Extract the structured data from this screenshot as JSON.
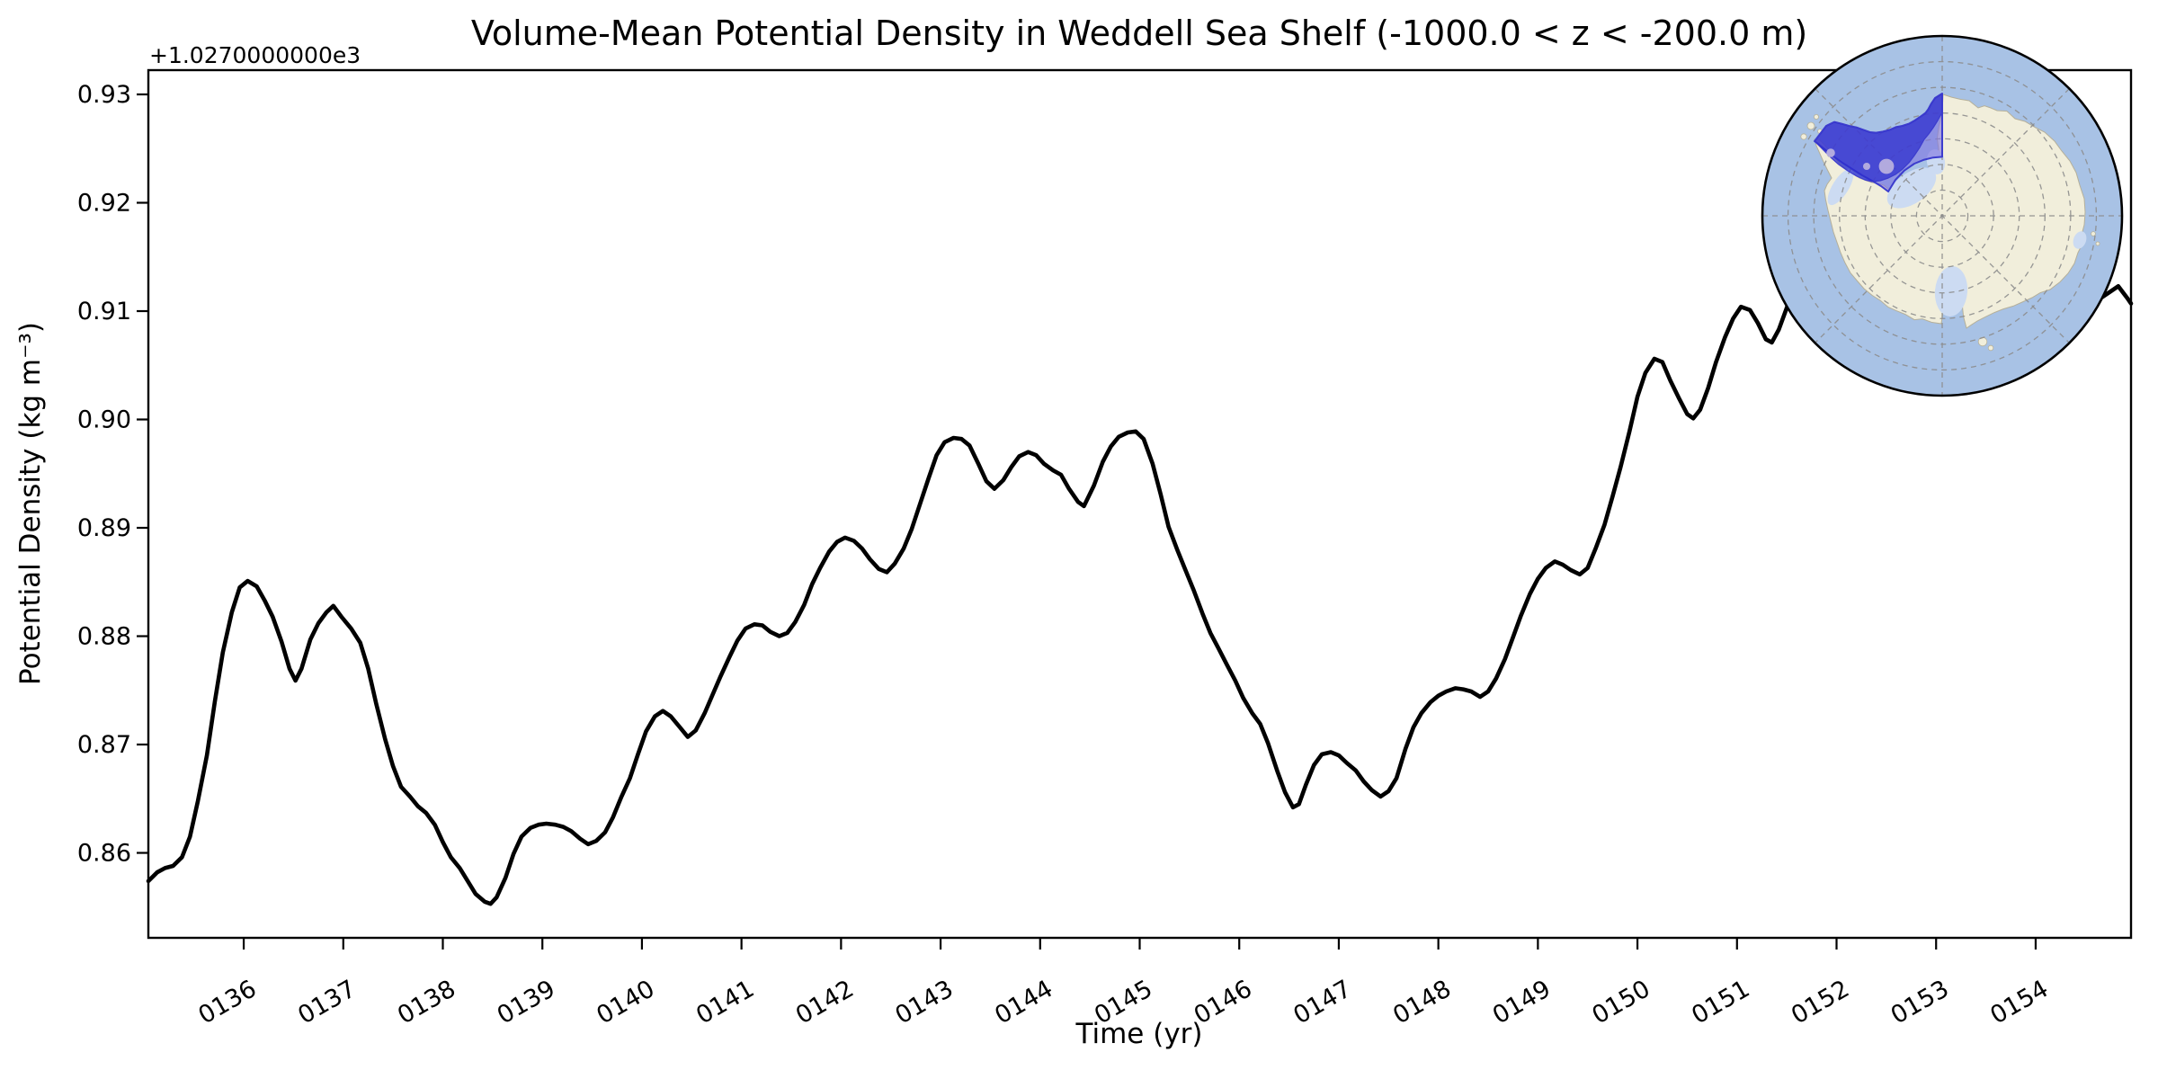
{
  "title": "Volume-Mean Potential Density in Weddell Sea Shelf (-1000.0 < z < -200.0 m)",
  "axes": {
    "xlabel": "Time (yr)",
    "ylabel": "Potential Density (kg m⁻³)",
    "y_offset_text": "+1.0270000000e3"
  },
  "chart_data": {
    "type": "line",
    "title": "Volume-Mean Potential Density in Weddell Sea Shelf (-1000.0 < z < -200.0 m)",
    "xlabel": "Time (yr)",
    "ylabel": "Potential Density (kg m⁻³)",
    "y_offset_value": 1027,
    "y_offset_text": "+1.0270000000e3",
    "xlim": [
      135.042,
      154.958
    ],
    "ylim": [
      0.85216,
      0.93224
    ],
    "x_ticks": [
      136,
      137,
      138,
      139,
      140,
      141,
      142,
      143,
      144,
      145,
      146,
      147,
      148,
      149,
      150,
      151,
      152,
      153,
      154
    ],
    "x_tick_labels": [
      "0136",
      "0137",
      "0138",
      "0139",
      "0140",
      "0141",
      "0142",
      "0143",
      "0144",
      "0145",
      "0146",
      "0147",
      "0148",
      "0149",
      "0150",
      "0151",
      "0152",
      "0153",
      "0154"
    ],
    "x_tick_rotation": 30,
    "y_ticks": [
      0.86,
      0.87,
      0.88,
      0.89,
      0.9,
      0.91,
      0.92,
      0.93
    ],
    "y_tick_labels": [
      "0.86",
      "0.87",
      "0.88",
      "0.89",
      "0.90",
      "0.91",
      "0.92",
      "0.93"
    ],
    "grid": false,
    "legend": "none",
    "line_color": "#000000",
    "line_width": 4.6,
    "series": [
      {
        "name": "volume-mean potential density (kg m-3, offset +1027)",
        "points": [
          [
            135.042,
            0.8574
          ],
          [
            135.13,
            0.8582
          ],
          [
            135.21,
            0.8586
          ],
          [
            135.29,
            0.8588
          ],
          [
            135.38,
            0.8596
          ],
          [
            135.46,
            0.8615
          ],
          [
            135.54,
            0.8648
          ],
          [
            135.63,
            0.869
          ],
          [
            135.71,
            0.874
          ],
          [
            135.79,
            0.8785
          ],
          [
            135.88,
            0.8822
          ],
          [
            135.96,
            0.8845
          ],
          [
            136.04,
            0.8851
          ],
          [
            136.13,
            0.8846
          ],
          [
            136.21,
            0.8833
          ],
          [
            136.29,
            0.8818
          ],
          [
            136.38,
            0.8795
          ],
          [
            136.46,
            0.877
          ],
          [
            136.52,
            0.8759
          ],
          [
            136.58,
            0.877
          ],
          [
            136.67,
            0.8797
          ],
          [
            136.75,
            0.8812
          ],
          [
            136.83,
            0.8822
          ],
          [
            136.9,
            0.8828
          ],
          [
            136.98,
            0.8818
          ],
          [
            137.08,
            0.8807
          ],
          [
            137.17,
            0.8794
          ],
          [
            137.25,
            0.877
          ],
          [
            137.33,
            0.8738
          ],
          [
            137.42,
            0.8705
          ],
          [
            137.5,
            0.868
          ],
          [
            137.58,
            0.8661
          ],
          [
            137.67,
            0.8652
          ],
          [
            137.75,
            0.8643
          ],
          [
            137.83,
            0.8637
          ],
          [
            137.92,
            0.8626
          ],
          [
            138.0,
            0.861
          ],
          [
            138.08,
            0.8596
          ],
          [
            138.17,
            0.8586
          ],
          [
            138.25,
            0.8574
          ],
          [
            138.33,
            0.8562
          ],
          [
            138.42,
            0.8555
          ],
          [
            138.48,
            0.8553
          ],
          [
            138.54,
            0.8559
          ],
          [
            138.63,
            0.8577
          ],
          [
            138.71,
            0.8599
          ],
          [
            138.79,
            0.8615
          ],
          [
            138.88,
            0.8623
          ],
          [
            138.96,
            0.8626
          ],
          [
            139.04,
            0.8627
          ],
          [
            139.13,
            0.8626
          ],
          [
            139.21,
            0.8624
          ],
          [
            139.29,
            0.862
          ],
          [
            139.38,
            0.8613
          ],
          [
            139.46,
            0.8608
          ],
          [
            139.54,
            0.8611
          ],
          [
            139.63,
            0.8619
          ],
          [
            139.71,
            0.8633
          ],
          [
            139.79,
            0.8651
          ],
          [
            139.88,
            0.8669
          ],
          [
            139.96,
            0.8691
          ],
          [
            140.04,
            0.8712
          ],
          [
            140.13,
            0.8726
          ],
          [
            140.21,
            0.8731
          ],
          [
            140.29,
            0.8726
          ],
          [
            140.38,
            0.8716
          ],
          [
            140.46,
            0.8707
          ],
          [
            140.54,
            0.8713
          ],
          [
            140.63,
            0.8729
          ],
          [
            140.71,
            0.8746
          ],
          [
            140.79,
            0.8763
          ],
          [
            140.88,
            0.8781
          ],
          [
            140.96,
            0.8796
          ],
          [
            141.04,
            0.8807
          ],
          [
            141.13,
            0.8811
          ],
          [
            141.21,
            0.881
          ],
          [
            141.29,
            0.8804
          ],
          [
            141.38,
            0.88
          ],
          [
            141.46,
            0.8803
          ],
          [
            141.54,
            0.8813
          ],
          [
            141.63,
            0.8829
          ],
          [
            141.71,
            0.8848
          ],
          [
            141.79,
            0.8863
          ],
          [
            141.88,
            0.8878
          ],
          [
            141.96,
            0.8887
          ],
          [
            142.04,
            0.8891
          ],
          [
            142.13,
            0.8888
          ],
          [
            142.21,
            0.8881
          ],
          [
            142.29,
            0.8871
          ],
          [
            142.38,
            0.8862
          ],
          [
            142.46,
            0.8859
          ],
          [
            142.54,
            0.8867
          ],
          [
            142.63,
            0.8881
          ],
          [
            142.71,
            0.8899
          ],
          [
            142.79,
            0.8921
          ],
          [
            142.88,
            0.8946
          ],
          [
            142.96,
            0.8967
          ],
          [
            143.04,
            0.8979
          ],
          [
            143.13,
            0.8983
          ],
          [
            143.21,
            0.8982
          ],
          [
            143.29,
            0.8976
          ],
          [
            143.38,
            0.8959
          ],
          [
            143.46,
            0.8943
          ],
          [
            143.54,
            0.8936
          ],
          [
            143.63,
            0.8944
          ],
          [
            143.71,
            0.8956
          ],
          [
            143.79,
            0.8966
          ],
          [
            143.88,
            0.897
          ],
          [
            143.96,
            0.8967
          ],
          [
            144.04,
            0.8959
          ],
          [
            144.13,
            0.8953
          ],
          [
            144.21,
            0.8949
          ],
          [
            144.29,
            0.8936
          ],
          [
            144.38,
            0.8924
          ],
          [
            144.44,
            0.892
          ],
          [
            144.54,
            0.8939
          ],
          [
            144.63,
            0.8961
          ],
          [
            144.71,
            0.8975
          ],
          [
            144.79,
            0.8984
          ],
          [
            144.88,
            0.8988
          ],
          [
            144.96,
            0.8989
          ],
          [
            145.04,
            0.8982
          ],
          [
            145.13,
            0.8959
          ],
          [
            145.21,
            0.8931
          ],
          [
            145.29,
            0.8901
          ],
          [
            145.38,
            0.8879
          ],
          [
            145.46,
            0.8861
          ],
          [
            145.54,
            0.8843
          ],
          [
            145.63,
            0.8821
          ],
          [
            145.71,
            0.8803
          ],
          [
            145.79,
            0.8789
          ],
          [
            145.88,
            0.8773
          ],
          [
            145.96,
            0.8759
          ],
          [
            146.04,
            0.8743
          ],
          [
            146.13,
            0.8729
          ],
          [
            146.21,
            0.8719
          ],
          [
            146.29,
            0.8701
          ],
          [
            146.38,
            0.8676
          ],
          [
            146.46,
            0.8656
          ],
          [
            146.54,
            0.8642
          ],
          [
            146.6,
            0.8645
          ],
          [
            146.67,
            0.8663
          ],
          [
            146.75,
            0.8681
          ],
          [
            146.83,
            0.8691
          ],
          [
            146.92,
            0.8693
          ],
          [
            147.0,
            0.869
          ],
          [
            147.08,
            0.8683
          ],
          [
            147.17,
            0.8676
          ],
          [
            147.25,
            0.8666
          ],
          [
            147.33,
            0.8658
          ],
          [
            147.42,
            0.8652
          ],
          [
            147.5,
            0.8657
          ],
          [
            147.58,
            0.8669
          ],
          [
            147.67,
            0.8696
          ],
          [
            147.75,
            0.8716
          ],
          [
            147.83,
            0.8729
          ],
          [
            147.92,
            0.8739
          ],
          [
            148.0,
            0.8745
          ],
          [
            148.08,
            0.8749
          ],
          [
            148.17,
            0.8752
          ],
          [
            148.25,
            0.8751
          ],
          [
            148.33,
            0.8749
          ],
          [
            148.42,
            0.8744
          ],
          [
            148.5,
            0.8749
          ],
          [
            148.58,
            0.8761
          ],
          [
            148.67,
            0.8779
          ],
          [
            148.75,
            0.8799
          ],
          [
            148.83,
            0.8819
          ],
          [
            148.92,
            0.8839
          ],
          [
            149.0,
            0.8853
          ],
          [
            149.08,
            0.8863
          ],
          [
            149.17,
            0.8869
          ],
          [
            149.25,
            0.8866
          ],
          [
            149.33,
            0.8861
          ],
          [
            149.42,
            0.8857
          ],
          [
            149.5,
            0.8863
          ],
          [
            149.58,
            0.8881
          ],
          [
            149.67,
            0.8903
          ],
          [
            149.75,
            0.8929
          ],
          [
            149.83,
            0.8956
          ],
          [
            149.92,
            0.8989
          ],
          [
            150.0,
            0.9021
          ],
          [
            150.08,
            0.9043
          ],
          [
            150.17,
            0.9056
          ],
          [
            150.25,
            0.9053
          ],
          [
            150.33,
            0.9036
          ],
          [
            150.42,
            0.9019
          ],
          [
            150.5,
            0.9005
          ],
          [
            150.56,
            0.9001
          ],
          [
            150.63,
            0.9009
          ],
          [
            150.71,
            0.9029
          ],
          [
            150.79,
            0.9053
          ],
          [
            150.88,
            0.9076
          ],
          [
            150.96,
            0.9093
          ],
          [
            151.04,
            0.9104
          ],
          [
            151.13,
            0.9101
          ],
          [
            151.21,
            0.9089
          ],
          [
            151.29,
            0.9074
          ],
          [
            151.35,
            0.9071
          ],
          [
            151.42,
            0.9083
          ],
          [
            151.5,
            0.9103
          ],
          [
            151.58,
            0.9126
          ],
          [
            151.67,
            0.9143
          ],
          [
            151.75,
            0.9156
          ],
          [
            151.83,
            0.9166
          ],
          [
            151.92,
            0.9173
          ],
          [
            152.0,
            0.9179
          ],
          [
            152.08,
            0.9181
          ],
          [
            152.17,
            0.9176
          ],
          [
            152.25,
            0.9169
          ],
          [
            152.33,
            0.9171
          ],
          [
            152.42,
            0.9183
          ],
          [
            152.5,
            0.9201
          ],
          [
            152.58,
            0.9223
          ],
          [
            152.67,
            0.9243
          ],
          [
            152.75,
            0.9259
          ],
          [
            152.83,
            0.9269
          ],
          [
            152.92,
            0.9273
          ],
          [
            153.0,
            0.9271
          ],
          [
            153.08,
            0.9263
          ],
          [
            153.17,
            0.9251
          ],
          [
            153.25,
            0.9246
          ],
          [
            153.33,
            0.9253
          ],
          [
            153.42,
            0.9266
          ],
          [
            153.5,
            0.9277
          ],
          [
            153.58,
            0.9283
          ],
          [
            153.67,
            0.9284
          ],
          [
            153.75,
            0.9276
          ],
          [
            153.83,
            0.9259
          ],
          [
            153.92,
            0.9236
          ],
          [
            154.0,
            0.9209
          ],
          [
            154.08,
            0.9181
          ],
          [
            154.17,
            0.9156
          ],
          [
            154.25,
            0.9139
          ],
          [
            154.33,
            0.9126
          ],
          [
            154.42,
            0.9119
          ],
          [
            154.5,
            0.9115
          ],
          [
            154.58,
            0.9111
          ],
          [
            154.67,
            0.9113
          ],
          [
            154.75,
            0.9118
          ],
          [
            154.83,
            0.9123
          ],
          [
            154.92,
            0.9112
          ],
          [
            154.958,
            0.9107
          ]
        ]
      }
    ]
  },
  "inset_map": {
    "description": "South polar stereographic map of Antarctica with Weddell Sea Shelf region highlighted",
    "highlight_region": "Weddell Sea Shelf",
    "colors": {
      "ocean": "#a8c2e5",
      "land": "#f1eedb",
      "land_edge": "#b5b09a",
      "ice_shelf": "#ccdbf2",
      "graticule": "#8c8c8c",
      "circle_edge": "#000000",
      "wedge_fill": "rgba(126,117,224,0.62)",
      "wedge_edge": "#3c3ccd",
      "shelf_fill": "rgba(45,45,205,0.72)",
      "ice_rise": "#b2aade"
    }
  }
}
